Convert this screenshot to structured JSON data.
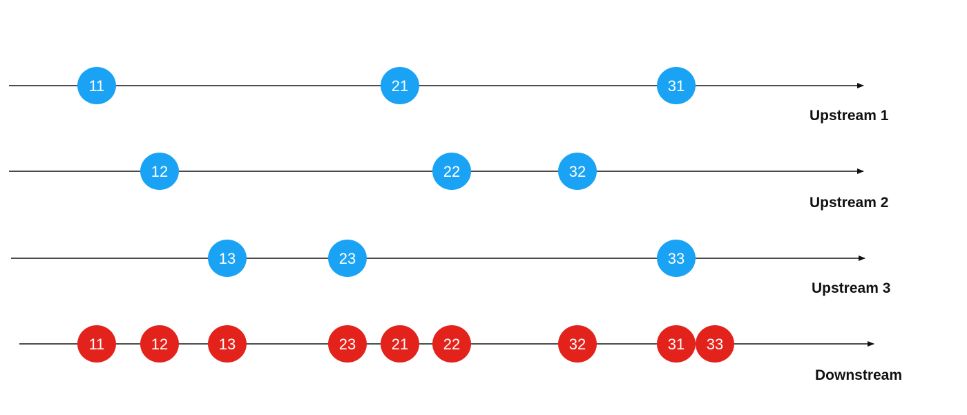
{
  "colors": {
    "upstream_marble": "#1aa3f4",
    "downstream_marble": "#e3231b",
    "line": "#111111",
    "marble_text": "#ffffff"
  },
  "streams": [
    {
      "id": "upstream-1",
      "label": "Upstream 1",
      "kind": "upstream",
      "marbles": [
        "11",
        "21",
        "31"
      ]
    },
    {
      "id": "upstream-2",
      "label": "Upstream 2",
      "kind": "upstream",
      "marbles": [
        "12",
        "22",
        "32"
      ]
    },
    {
      "id": "upstream-3",
      "label": "Upstream 3",
      "kind": "upstream",
      "marbles": [
        "13",
        "23",
        "33"
      ]
    },
    {
      "id": "downstream",
      "label": "Downstream",
      "kind": "downstream",
      "marbles": [
        "11",
        "12",
        "13",
        "23",
        "21",
        "22",
        "32",
        "31",
        "33"
      ]
    }
  ]
}
